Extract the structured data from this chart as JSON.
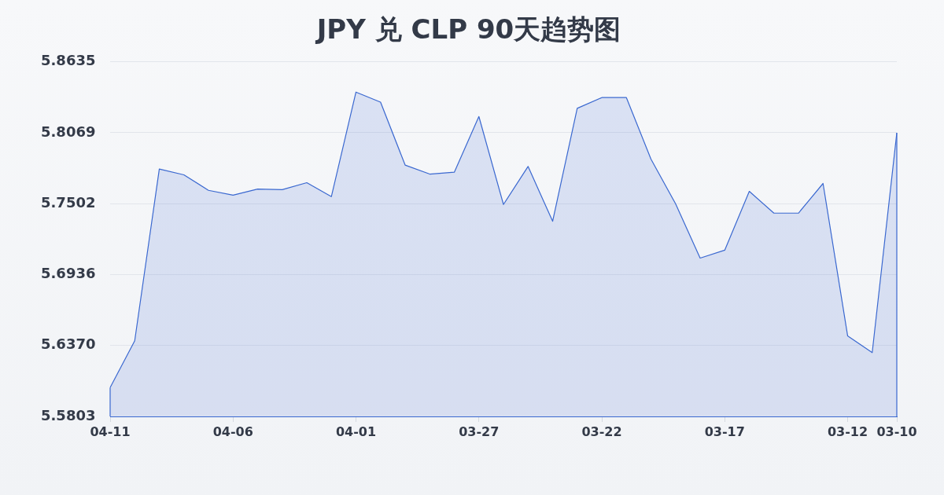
{
  "chart_data": {
    "type": "area",
    "title": "JPY 兑 CLP 90天趋势图",
    "categories": [
      "04-11",
      null,
      null,
      null,
      null,
      "04-06",
      null,
      null,
      null,
      null,
      "04-01",
      null,
      null,
      null,
      null,
      "03-27",
      null,
      null,
      null,
      null,
      "03-22",
      null,
      null,
      null,
      null,
      "03-17",
      null,
      null,
      null,
      null,
      "03-12",
      null,
      "03-10"
    ],
    "values": [
      5.6034,
      5.6407,
      5.7779,
      5.7733,
      5.7609,
      5.7571,
      5.7619,
      5.7615,
      5.767,
      5.7559,
      5.8394,
      5.8314,
      5.7811,
      5.7739,
      5.7754,
      5.8199,
      5.7496,
      5.78,
      5.7362,
      5.8264,
      5.835,
      5.835,
      5.7859,
      5.7502,
      5.7068,
      5.7131,
      5.7601,
      5.7427,
      5.7427,
      5.7664,
      5.6447,
      5.6313,
      5.8069
    ],
    "color": "#3a68d0",
    "ylim": [
      5.5803,
      5.8635
    ],
    "yticks": [
      5.5803,
      {
        "value": 5.637,
        "label": "5.6370"
      },
      5.6936,
      5.7502,
      5.8069,
      5.8635
    ],
    "grid": "y",
    "legend": false
  }
}
